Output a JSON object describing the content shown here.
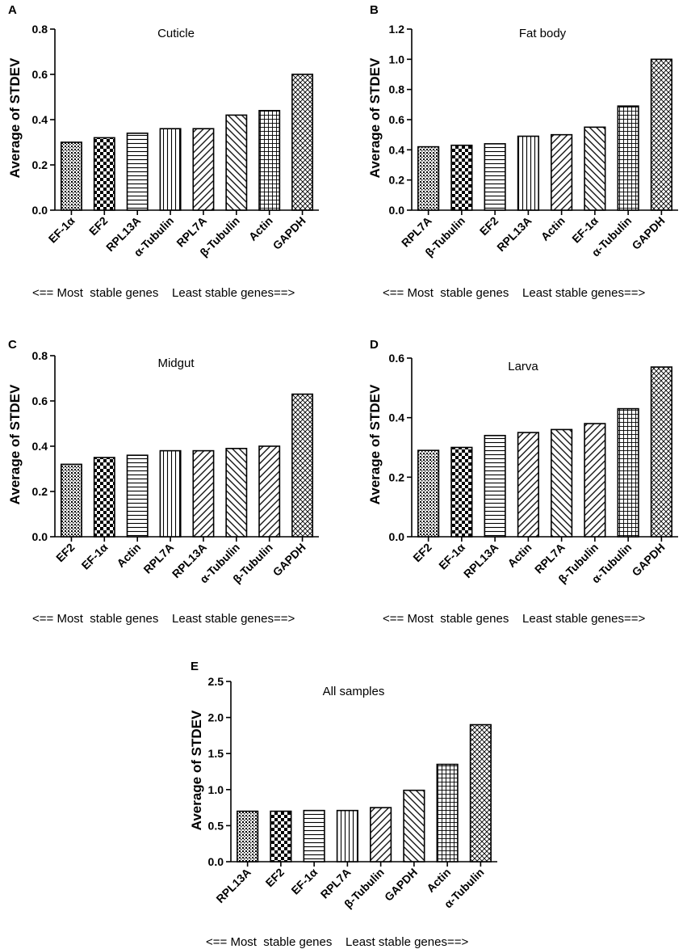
{
  "chart_data": [
    {
      "panel": "A",
      "type": "bar",
      "title": "Cuticle",
      "ylabel": "Average of STDEV",
      "xlabel": "",
      "ylim": [
        0,
        0.8
      ],
      "yticks": [
        "0.0",
        "0.2",
        "0.4",
        "0.6",
        "0.8"
      ],
      "categories": [
        "EF-1α",
        "EF2",
        "RPL13A",
        "α-Tubulin",
        "RPL7A",
        "β-Tubulin",
        "Actin",
        "GAPDH"
      ],
      "values": [
        0.3,
        0.32,
        0.34,
        0.36,
        0.36,
        0.42,
        0.44,
        0.6
      ],
      "patterns": [
        "dots",
        "checker",
        "hlines",
        "vlines",
        "diag-fwd",
        "diag-back",
        "grid",
        "crosshatch"
      ],
      "caption": "<== Most  stable genes    Least stable genes==>"
    },
    {
      "panel": "B",
      "type": "bar",
      "title": "Fat body",
      "ylabel": "Average of STDEV",
      "xlabel": "",
      "ylim": [
        0,
        1.2
      ],
      "yticks": [
        "0.0",
        "0.2",
        "0.4",
        "0.6",
        "0.8",
        "1.0",
        "1.2"
      ],
      "categories": [
        "RPL7A",
        "β-Tubulin",
        "EF2",
        "RPL13A",
        "Actin",
        "EF-1α",
        "α-Tubulin",
        "GAPDH"
      ],
      "values": [
        0.42,
        0.43,
        0.44,
        0.49,
        0.5,
        0.55,
        0.69,
        1.0
      ],
      "patterns": [
        "dots",
        "checker",
        "hlines",
        "vlines",
        "diag-fwd",
        "diag-back",
        "grid",
        "crosshatch"
      ],
      "caption": "<== Most  stable genes    Least stable genes==>"
    },
    {
      "panel": "C",
      "type": "bar",
      "title": "Midgut",
      "ylabel": "Average of STDEV",
      "xlabel": "",
      "ylim": [
        0,
        0.8
      ],
      "yticks": [
        "0.0",
        "0.2",
        "0.4",
        "0.6",
        "0.8"
      ],
      "categories": [
        "EF2",
        "EF-1α",
        "Actin",
        "RPL7A",
        "RPL13A",
        "α-Tubulin",
        "β-Tubulin",
        "GAPDH"
      ],
      "values": [
        0.32,
        0.35,
        0.36,
        0.38,
        0.38,
        0.39,
        0.4,
        0.63
      ],
      "patterns": [
        "dots",
        "checker",
        "hlines",
        "vlines",
        "diag-fwd",
        "diag-back",
        "diag-fwd",
        "crosshatch"
      ],
      "caption": "<== Most  stable genes    Least stable genes==>"
    },
    {
      "panel": "D",
      "type": "bar",
      "title": "Larva",
      "ylabel": "Average of STDEV",
      "xlabel": "",
      "ylim": [
        0,
        0.6
      ],
      "yticks": [
        "0.0",
        "0.2",
        "0.4",
        "0.6"
      ],
      "categories": [
        "EF2",
        "EF-1α",
        "RPL13A",
        "Actin",
        "RPL7A",
        "β-Tubulin",
        "α-Tubulin",
        "GAPDH"
      ],
      "values": [
        0.29,
        0.3,
        0.34,
        0.35,
        0.36,
        0.38,
        0.43,
        0.57
      ],
      "patterns": [
        "dots",
        "checker",
        "hlines",
        "diag-fwd",
        "diag-back",
        "diag-fwd",
        "grid",
        "crosshatch"
      ],
      "caption": "<== Most  stable genes    Least stable genes==>"
    },
    {
      "panel": "E",
      "type": "bar",
      "title": "All samples",
      "ylabel": "Average of STDEV",
      "xlabel": "",
      "ylim": [
        0,
        2.5
      ],
      "yticks": [
        "0.0",
        "0.5",
        "1.0",
        "1.5",
        "2.0",
        "2.5"
      ],
      "categories": [
        "RPL13A",
        "EF2",
        "EF-1α",
        "RPL7A",
        "β-Tubulin",
        "GAPDH",
        "Actin",
        "α-Tubulin"
      ],
      "values": [
        0.7,
        0.7,
        0.71,
        0.71,
        0.75,
        0.99,
        1.35,
        1.9
      ],
      "patterns": [
        "dots",
        "checker",
        "hlines",
        "vlines",
        "diag-fwd",
        "diag-back",
        "grid",
        "crosshatch"
      ],
      "caption": "<== Most  stable genes    Least stable genes==>"
    }
  ]
}
